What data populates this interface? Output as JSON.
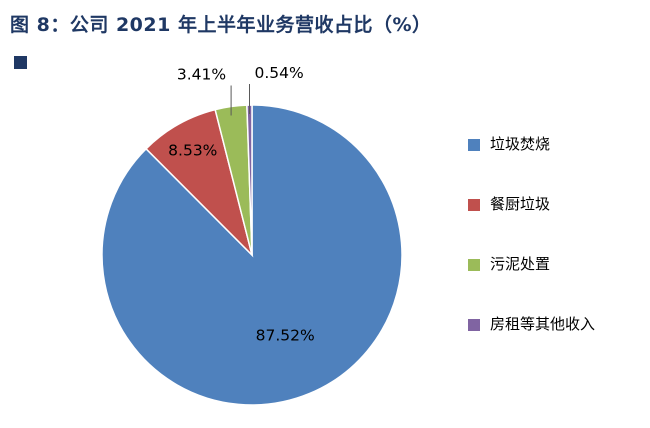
{
  "page": {
    "background": "#ffffff"
  },
  "header": {
    "figure_label": "图 8：公司 2021 年上半年业务营收占比（%）",
    "title_color": "#1F3864"
  },
  "chart_data": {
    "type": "pie",
    "title": "公司 2021 年上半年业务营收占比（%）",
    "unit": "%",
    "legend_position": "right",
    "direction": "clockwise",
    "start_angle_deg": 0,
    "grid": false,
    "slices": [
      {
        "label": "垃圾焚烧",
        "value": 87.52,
        "display": "87.52%",
        "color": "#4F81BD",
        "label_placement": "inside"
      },
      {
        "label": "餐厨垃圾",
        "value": 8.53,
        "display": "8.53%",
        "color": "#C0504D",
        "label_placement": "inside"
      },
      {
        "label": "污泥处置",
        "value": 3.41,
        "display": "3.41%",
        "color": "#9BBB59",
        "label_placement": "outside-left"
      },
      {
        "label": "房租等其他收入",
        "value": 0.54,
        "display": "0.54%",
        "color": "#8064A2",
        "label_placement": "outside-right"
      }
    ]
  }
}
